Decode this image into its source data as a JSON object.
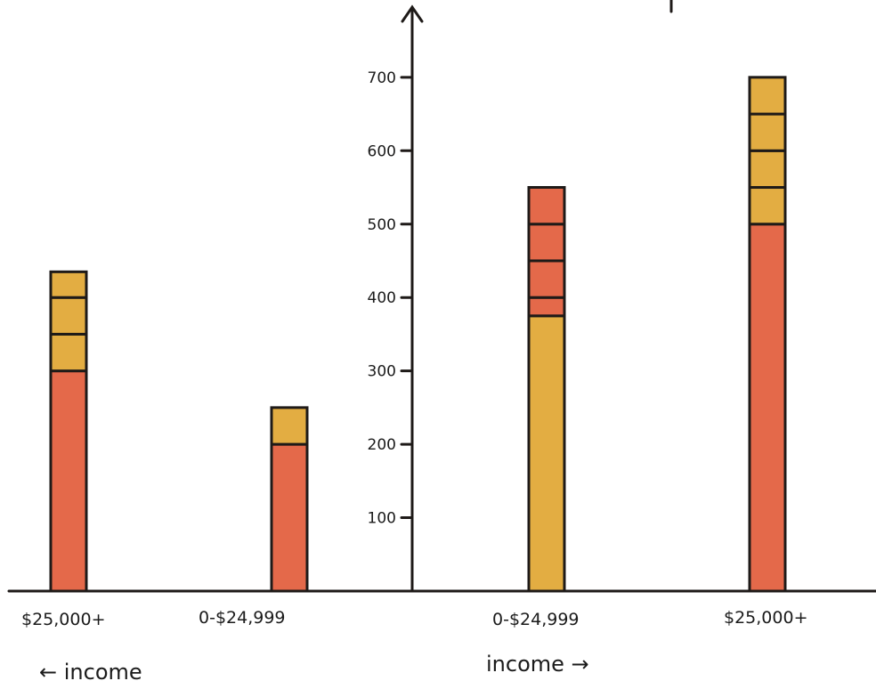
{
  "chart_data": {
    "type": "bar",
    "stacked": true,
    "y_axis": {
      "ticks": [
        100,
        200,
        300,
        400,
        500,
        600,
        700
      ],
      "tick_labels": [
        "100",
        "200",
        "300",
        "400",
        "500",
        "600",
        "700"
      ]
    },
    "x_axis_captions": {
      "left": "← income",
      "right": "income →"
    },
    "categories": [
      "$25,000+",
      "0-$24,999",
      "0-$24,999",
      "$25,000+"
    ],
    "category_side": [
      "left",
      "left",
      "right",
      "right"
    ],
    "bars": [
      {
        "label": "$25,000+",
        "segments": [
          {
            "color": "#e4694a",
            "from": 0,
            "to": 300
          },
          {
            "color": "#e3ad42",
            "from": 300,
            "to": 350
          },
          {
            "color": "#e3ad42",
            "from": 350,
            "to": 400
          },
          {
            "color": "#e3ad42",
            "from": 400,
            "to": 435
          }
        ]
      },
      {
        "label": "0-$24,999",
        "segments": [
          {
            "color": "#e4694a",
            "from": 0,
            "to": 200
          },
          {
            "color": "#e3ad42",
            "from": 200,
            "to": 250
          }
        ]
      },
      {
        "label": "0-$24,999",
        "segments": [
          {
            "color": "#e3ad42",
            "from": 0,
            "to": 375
          },
          {
            "color": "#e4694a",
            "from": 375,
            "to": 400
          },
          {
            "color": "#e4694a",
            "from": 400,
            "to": 450
          },
          {
            "color": "#e4694a",
            "from": 450,
            "to": 500
          },
          {
            "color": "#e4694a",
            "from": 500,
            "to": 550
          }
        ]
      },
      {
        "label": "$25,000+",
        "segments": [
          {
            "color": "#e4694a",
            "from": 0,
            "to": 500
          },
          {
            "color": "#e3ad42",
            "from": 500,
            "to": 550
          },
          {
            "color": "#e3ad42",
            "from": 550,
            "to": 600
          },
          {
            "color": "#e3ad42",
            "from": 600,
            "to": 650
          },
          {
            "color": "#e3ad42",
            "from": 650,
            "to": 700
          }
        ]
      }
    ],
    "colors": {
      "red": "#e4694a",
      "yellow": "#e3ad42",
      "ink": "#1e1a18"
    }
  }
}
